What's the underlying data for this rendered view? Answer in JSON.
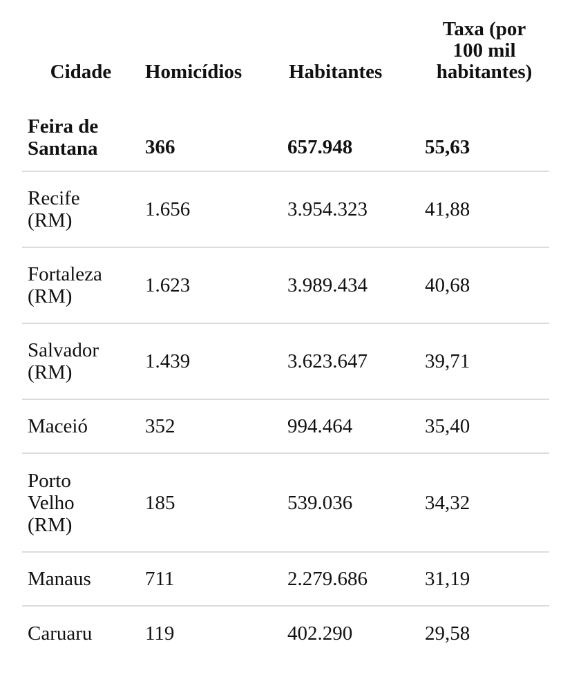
{
  "table": {
    "headers": {
      "city": "Cidade",
      "homicides": "Homicídios",
      "inhabitants": "Habitantes",
      "rate_line1": "Taxa (por",
      "rate_line2": "100 mil",
      "rate_line3": "habitantes)"
    },
    "rows": [
      {
        "city_line1": "Feira de",
        "city_line2": "Santana",
        "city_line3": "",
        "homicides": "366",
        "inhabitants": "657.948",
        "rate": "55,63"
      },
      {
        "city_line1": "Recife",
        "city_line2": "(RM)",
        "city_line3": "",
        "homicides": "1.656",
        "inhabitants": "3.954.323",
        "rate": "41,88"
      },
      {
        "city_line1": "Fortaleza",
        "city_line2": "(RM)",
        "city_line3": "",
        "homicides": "1.623",
        "inhabitants": "3.989.434",
        "rate": "40,68"
      },
      {
        "city_line1": "Salvador",
        "city_line2": "(RM)",
        "city_line3": "",
        "homicides": "1.439",
        "inhabitants": "3.623.647",
        "rate": "39,71"
      },
      {
        "city_line1": "Maceió",
        "city_line2": "",
        "city_line3": "",
        "homicides": "352",
        "inhabitants": "994.464",
        "rate": "35,40"
      },
      {
        "city_line1": "Porto",
        "city_line2": "Velho",
        "city_line3": "(RM)",
        "homicides": "185",
        "inhabitants": "539.036",
        "rate": "34,32"
      },
      {
        "city_line1": "Manaus",
        "city_line2": "",
        "city_line3": "",
        "homicides": "711",
        "inhabitants": "2.279.686",
        "rate": "31,19"
      },
      {
        "city_line1": "Caruaru",
        "city_line2": "",
        "city_line3": "",
        "homicides": "119",
        "inhabitants": "402.290",
        "rate": "29,58"
      }
    ]
  }
}
